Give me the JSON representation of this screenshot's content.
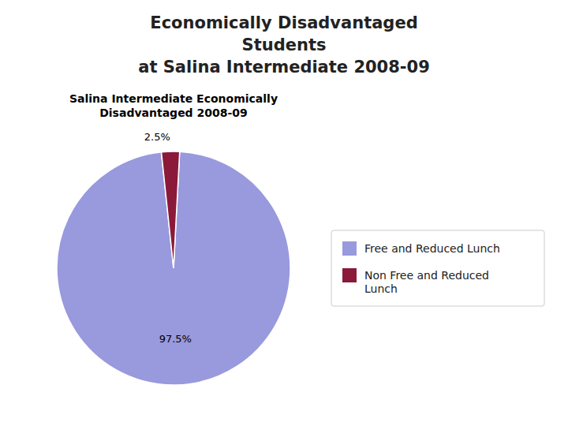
{
  "chart_data": {
    "type": "pie",
    "title": "Economically Disadvantaged\nStudents\nat Salina Intermediate 2008-09",
    "subtitle": "Salina Intermediate Economically\nDisadvantaged 2008-09",
    "categories": [
      "Free and Reduced Lunch",
      "Non Free and Reduced\nLunch"
    ],
    "values": [
      97.5,
      2.5
    ],
    "value_labels": [
      "97.5%",
      "2.5%"
    ],
    "data_labels": true,
    "colors": [
      "#9999dd",
      "#8B1A3A"
    ],
    "legend": "right"
  }
}
